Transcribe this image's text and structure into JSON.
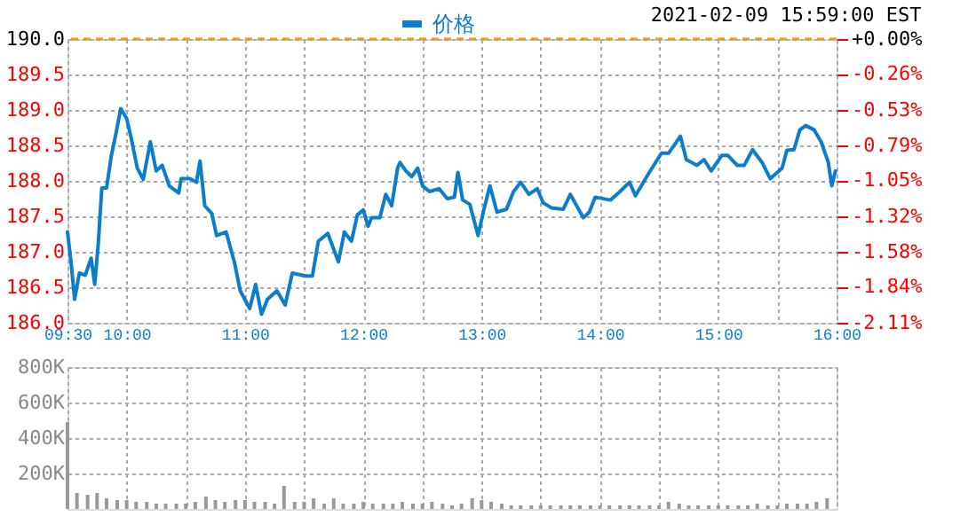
{
  "chart_data": [
    {
      "type": "line",
      "annotations": [
        "2021-02-09 15:59:00 EST"
      ],
      "series": [
        {
          "name": "价格",
          "color": "#0c7dcb",
          "x": [
            9.5,
            9.53,
            9.56,
            9.6,
            9.65,
            9.7,
            9.73,
            9.76,
            9.79,
            9.83,
            9.87,
            9.91,
            9.95,
            10.0,
            10.04,
            10.09,
            10.14,
            10.2,
            10.25,
            10.3,
            10.36,
            10.44,
            10.46,
            10.54,
            10.59,
            10.62,
            10.66,
            10.72,
            10.76,
            10.84,
            10.91,
            10.96,
            11.04,
            11.09,
            11.14,
            11.19,
            11.27,
            11.34,
            11.4,
            11.51,
            11.57,
            11.62,
            11.7,
            11.79,
            11.84,
            11.9,
            11.95,
            12.0,
            12.04,
            12.07,
            12.14,
            12.19,
            12.24,
            12.29,
            12.31,
            12.36,
            12.41,
            12.46,
            12.5,
            12.56,
            12.64,
            12.71,
            12.77,
            12.8,
            12.84,
            12.9,
            12.97,
            13.02,
            13.07,
            13.13,
            13.21,
            13.27,
            13.33,
            13.4,
            13.47,
            13.52,
            13.59,
            13.69,
            13.75,
            13.86,
            13.91,
            13.96,
            14.09,
            14.17,
            14.25,
            14.3,
            14.41,
            14.52,
            14.58,
            14.68,
            14.73,
            14.82,
            14.88,
            14.94,
            15.03,
            15.08,
            15.16,
            15.22,
            15.29,
            15.37,
            15.44,
            15.54,
            15.58,
            15.64,
            15.69,
            15.74,
            15.81,
            15.87,
            15.93,
            15.96,
            15.99
          ],
          "values": [
            187.28,
            186.86,
            186.33,
            186.7,
            186.67,
            186.91,
            186.54,
            187.11,
            187.9,
            187.9,
            188.35,
            188.67,
            189.02,
            188.88,
            188.59,
            188.18,
            188.02,
            188.55,
            188.14,
            188.22,
            187.93,
            187.83,
            188.03,
            188.03,
            187.98,
            188.28,
            187.65,
            187.54,
            187.23,
            187.28,
            186.86,
            186.45,
            186.2,
            186.54,
            186.12,
            186.33,
            186.45,
            186.25,
            186.7,
            186.66,
            186.66,
            187.15,
            187.26,
            186.86,
            187.28,
            187.15,
            187.52,
            187.59,
            187.36,
            187.48,
            187.48,
            187.81,
            187.65,
            188.18,
            188.26,
            188.14,
            188.06,
            188.18,
            187.93,
            187.85,
            187.89,
            187.75,
            187.77,
            188.12,
            187.73,
            187.67,
            187.23,
            187.6,
            187.93,
            187.56,
            187.6,
            187.85,
            187.98,
            187.81,
            187.89,
            187.69,
            187.62,
            187.6,
            187.81,
            187.48,
            187.56,
            187.77,
            187.73,
            187.85,
            187.98,
            187.79,
            188.1,
            188.39,
            188.39,
            188.63,
            188.3,
            188.22,
            188.3,
            188.14,
            188.36,
            188.36,
            188.22,
            188.22,
            188.44,
            188.26,
            188.03,
            188.18,
            188.43,
            188.44,
            188.72,
            188.78,
            188.72,
            188.55,
            188.26,
            187.93,
            188.14
          ]
        }
      ],
      "xlim": [
        9.5,
        16
      ],
      "xticks": [
        {
          "value": 9.5,
          "label": "09:30"
        },
        {
          "value": 10,
          "label": "10:00"
        },
        {
          "value": 10.5,
          "label": null
        },
        {
          "value": 11,
          "label": "11:00"
        },
        {
          "value": 11.5,
          "label": null
        },
        {
          "value": 12,
          "label": "12:00"
        },
        {
          "value": 12.5,
          "label": null
        },
        {
          "value": 13,
          "label": "13:00"
        },
        {
          "value": 13.5,
          "label": null
        },
        {
          "value": 14,
          "label": "14:00"
        },
        {
          "value": 14.5,
          "label": null
        },
        {
          "value": 15,
          "label": "15:00"
        },
        {
          "value": 15.5,
          "label": null
        },
        {
          "value": 16,
          "label": "16:00"
        }
      ],
      "ylim": [
        186,
        190
      ],
      "yticks": [
        {
          "value": 186,
          "label": "186.0"
        },
        {
          "value": 186.5,
          "label": "186.5"
        },
        {
          "value": 187,
          "label": "187.0"
        },
        {
          "value": 187.5,
          "label": "187.5"
        },
        {
          "value": 188,
          "label": "188.0"
        },
        {
          "value": 188.5,
          "label": "188.5"
        },
        {
          "value": 189,
          "label": "189.0"
        },
        {
          "value": 189.5,
          "label": "189.5"
        },
        {
          "value": 190,
          "label": "190.0"
        }
      ],
      "y2lim": [
        -2.11,
        0
      ],
      "y2ticks": [
        {
          "value": -2.11,
          "label": "-2.11%"
        },
        {
          "value": -1.84,
          "label": "-1.84%"
        },
        {
          "value": -1.58,
          "label": "-1.58%"
        },
        {
          "value": -1.32,
          "label": "-1.32%"
        },
        {
          "value": -1.05,
          "label": "-1.05%"
        },
        {
          "value": -0.79,
          "label": "-0.79%"
        },
        {
          "value": -0.53,
          "label": "-0.53%"
        },
        {
          "value": -0.26,
          "label": "-0.26%"
        },
        {
          "value": 0,
          "label": "+0.00%"
        }
      ],
      "ref_lines": [
        {
          "axis": "y",
          "value": 190,
          "color": "#f7941d",
          "line_style": "dashed"
        }
      ],
      "grid": true,
      "legend": "top",
      "marker": "none",
      "line_style": "solid"
    },
    {
      "type": "bar",
      "color": "#999999",
      "x": [
        9.5,
        9.58,
        9.67,
        9.75,
        9.83,
        9.92,
        10,
        10.08,
        10.17,
        10.25,
        10.33,
        10.42,
        10.5,
        10.58,
        10.67,
        10.75,
        10.83,
        10.92,
        11,
        11.08,
        11.17,
        11.25,
        11.33,
        11.42,
        11.5,
        11.58,
        11.67,
        11.75,
        11.83,
        11.92,
        12,
        12.08,
        12.17,
        12.25,
        12.33,
        12.42,
        12.5,
        12.58,
        12.67,
        12.75,
        12.83,
        12.92,
        13,
        13.08,
        13.17,
        13.25,
        13.33,
        13.42,
        13.5,
        13.58,
        13.67,
        13.75,
        13.83,
        13.92,
        14,
        14.08,
        14.17,
        14.25,
        14.33,
        14.42,
        14.5,
        14.58,
        14.67,
        14.75,
        14.83,
        14.92,
        15,
        15.08,
        15.17,
        15.25,
        15.33,
        15.42,
        15.5,
        15.58,
        15.67,
        15.75,
        15.83,
        15.92
      ],
      "values": [
        490000,
        90000,
        80000,
        90000,
        60000,
        50000,
        50000,
        40000,
        40000,
        30000,
        30000,
        30000,
        30000,
        40000,
        70000,
        50000,
        40000,
        50000,
        50000,
        40000,
        40000,
        30000,
        130000,
        40000,
        40000,
        60000,
        30000,
        60000,
        30000,
        30000,
        40000,
        30000,
        30000,
        30000,
        40000,
        30000,
        30000,
        40000,
        30000,
        20000,
        30000,
        60000,
        50000,
        40000,
        30000,
        20000,
        20000,
        20000,
        20000,
        20000,
        20000,
        20000,
        20000,
        20000,
        20000,
        20000,
        20000,
        20000,
        20000,
        20000,
        20000,
        40000,
        30000,
        20000,
        20000,
        20000,
        20000,
        20000,
        20000,
        20000,
        30000,
        20000,
        20000,
        30000,
        30000,
        30000,
        40000,
        60000
      ],
      "xlim": [
        9.5,
        16
      ],
      "xticks": [
        9.5,
        10,
        10.5,
        11,
        11.5,
        12,
        12.5,
        13,
        13.5,
        14,
        14.5,
        15,
        15.5,
        16
      ],
      "ylim": [
        0,
        800000
      ],
      "yticks": [
        {
          "value": 200000,
          "label": "200K"
        },
        {
          "value": 400000,
          "label": "400K"
        },
        {
          "value": 600000,
          "label": "600K"
        },
        {
          "value": 800000,
          "label": "800K"
        }
      ],
      "grid": true,
      "tick_labels": "y"
    }
  ]
}
